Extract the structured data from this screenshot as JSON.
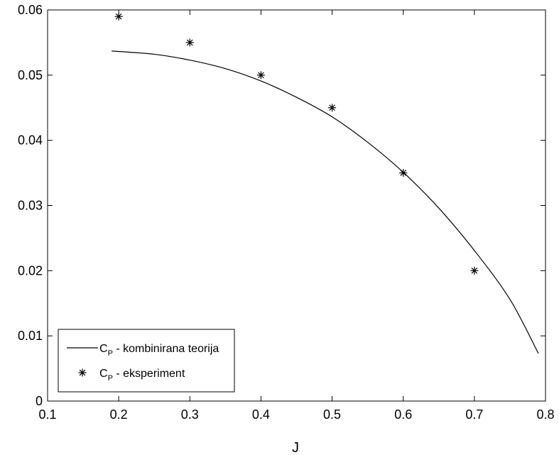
{
  "chart_data": {
    "type": "line",
    "title": "",
    "xlabel": "J",
    "ylabel": "",
    "xlim": [
      0.1,
      0.8
    ],
    "ylim": [
      0,
      0.06
    ],
    "xticks": [
      "0.1",
      "0.2",
      "0.3",
      "0.4",
      "0.5",
      "0.6",
      "0.7",
      "0.8"
    ],
    "yticks": [
      "0",
      "0.01",
      "0.02",
      "0.03",
      "0.04",
      "0.05",
      "0.06"
    ],
    "grid": false,
    "legend_position": "bottom-left",
    "series": [
      {
        "name": "C_P - kombinirana teorija",
        "type": "line",
        "color": "#000000",
        "x": [
          0.19,
          0.25,
          0.3,
          0.35,
          0.4,
          0.45,
          0.5,
          0.55,
          0.6,
          0.65,
          0.7,
          0.75,
          0.79
        ],
        "y": [
          0.0537,
          0.0532,
          0.0523,
          0.051,
          0.0491,
          0.0466,
          0.0436,
          0.0397,
          0.0351,
          0.0296,
          0.0231,
          0.0156,
          0.0073
        ]
      },
      {
        "name": "C_P - eksperiment",
        "type": "scatter",
        "marker": "asterisk",
        "color": "#000000",
        "x": [
          0.2,
          0.3,
          0.4,
          0.5,
          0.6,
          0.7
        ],
        "y": [
          0.059,
          0.055,
          0.05,
          0.045,
          0.035,
          0.02
        ]
      }
    ],
    "legend": {
      "entries": [
        {
          "main": "C",
          "sub": "P",
          "text": " - kombinirana teorija"
        },
        {
          "main": "C",
          "sub": "P",
          "text": " - eksperiment"
        }
      ]
    }
  }
}
